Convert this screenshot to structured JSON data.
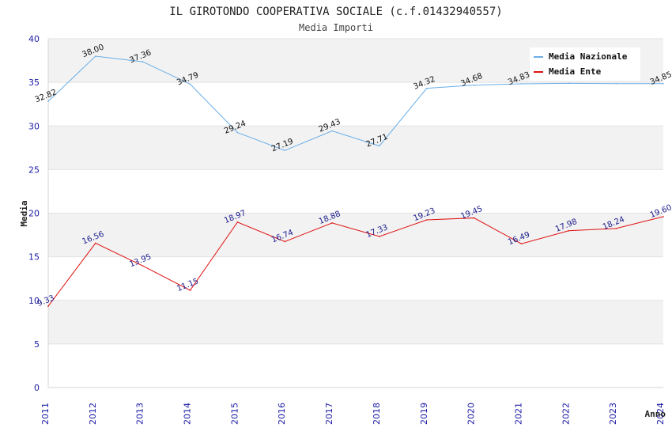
{
  "chart_data": {
    "type": "line",
    "title": "IL GIROTONDO COOPERATIVA SOCIALE (c.f.01432940557)",
    "subtitle": "Media Importi",
    "xlabel": "Anno",
    "ylabel": "Media",
    "categories": [
      "2011",
      "2012",
      "2013",
      "2014",
      "2015",
      "2016",
      "2017",
      "2018",
      "2019",
      "2020",
      "2021",
      "2022",
      "2023",
      "2024"
    ],
    "ylim": [
      0,
      40
    ],
    "yticks": [
      0,
      5,
      10,
      15,
      20,
      25,
      30,
      35,
      40
    ],
    "grid": true,
    "legend_position": "top-right",
    "series": [
      {
        "name": "Media Nazionale",
        "color": "#6aaee8",
        "label_color": "#111111",
        "values": [
          32.82,
          38.0,
          37.36,
          34.79,
          29.24,
          27.19,
          29.43,
          27.71,
          34.32,
          34.68,
          34.83,
          34.89,
          34.85,
          34.85
        ],
        "labels": [
          "32.82",
          "38.00",
          "37.36",
          "34.79",
          "29.24",
          "27.19",
          "29.43",
          "27.71",
          "34.32",
          "34.68",
          "34.83",
          "",
          "",
          "34.85"
        ]
      },
      {
        "name": "Media Ente",
        "color": "#e01010",
        "label_color": "#1a1a8c",
        "values": [
          9.33,
          16.56,
          13.95,
          11.15,
          18.97,
          16.74,
          18.88,
          17.33,
          19.23,
          19.45,
          16.49,
          17.98,
          18.24,
          19.6
        ],
        "labels": [
          "9.33",
          "16.56",
          "13.95",
          "11.15",
          "18.97",
          "16.74",
          "18.88",
          "17.33",
          "19.23",
          "19.45",
          "16.49",
          "17.98",
          "18.24",
          "19.60"
        ]
      }
    ]
  }
}
